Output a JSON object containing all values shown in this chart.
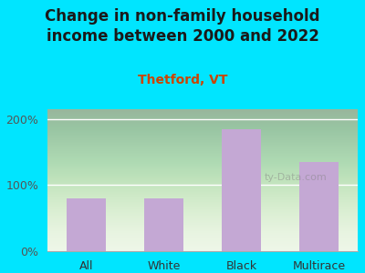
{
  "title": "Change in non-family household\nincome between 2000 and 2022",
  "subtitle": "Thetford, VT",
  "categories": [
    "All",
    "White",
    "Black",
    "Multirace"
  ],
  "values": [
    80,
    80,
    185,
    135
  ],
  "bar_color": "#c4a8d4",
  "background_color": "#00e5ff",
  "title_color": "#1a1a1a",
  "subtitle_color": "#cc4400",
  "ylabel_ticks": [
    "0%",
    "100%",
    "200%"
  ],
  "ytick_vals": [
    0,
    100,
    200
  ],
  "ylim": [
    0,
    215
  ],
  "watermark": "ty-Data.com",
  "title_fontsize": 12,
  "subtitle_fontsize": 10,
  "tick_fontsize": 9
}
